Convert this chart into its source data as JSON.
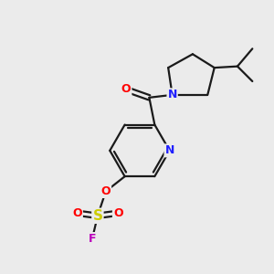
{
  "bg_color": "#ebebeb",
  "atom_colors": {
    "C": "#000000",
    "N": "#2020ff",
    "O": "#ff0000",
    "S": "#cccc00",
    "F": "#bb00bb"
  },
  "bond_color": "#1a1a1a",
  "bond_width": 1.6,
  "figsize": [
    3.0,
    3.0
  ],
  "dpi": 100
}
